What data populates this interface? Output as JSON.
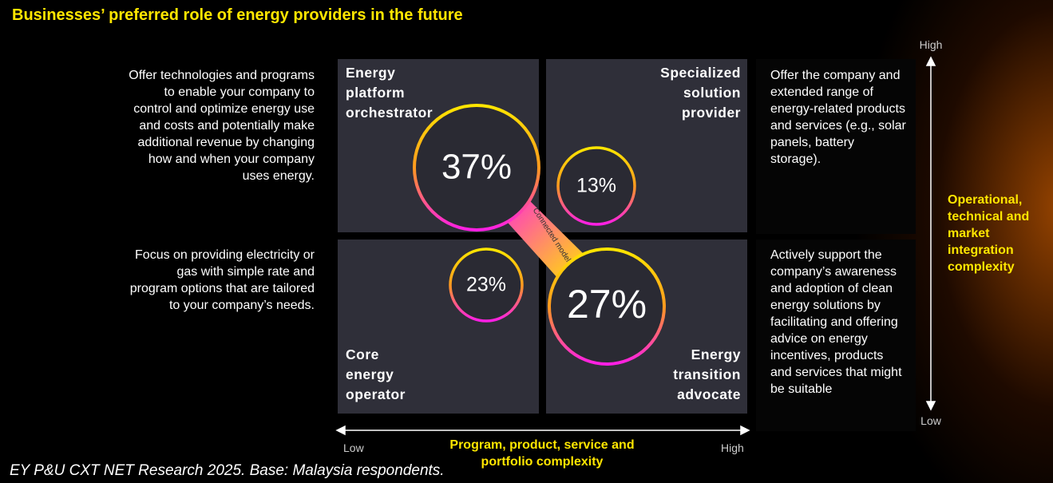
{
  "title": "Businesses’ preferred role of energy providers in the future",
  "quadrants": [
    {
      "label": "Energy platform orchestrator",
      "share": "37%"
    },
    {
      "label": "Specialized solution provider",
      "share": "13%"
    },
    {
      "label": "Core energy operator",
      "share": "23%"
    },
    {
      "label": "Energy transition advocate",
      "share": "27%"
    }
  ],
  "left_descriptions": [
    "Offer technologies and programs to enable your company to control and optimize energy use and costs and potentially make additional revenue by changing how and when your company uses energy.",
    "Focus on providing electricity or gas with simple rate and program options that are tailored to your company’s needs."
  ],
  "right_descriptions": [
    "Offer the company and extended range of energy-related products and services (e.g., solar panels, battery storage).",
    "Actively support the company’s awareness and adoption of clean energy solutions by facilitating and offering advice on energy incentives, products and services that might be suitable"
  ],
  "connector_label": "Connected models",
  "y_axis": {
    "high": "High",
    "low": "Low",
    "label": "Operational, technical and market integration complexity"
  },
  "x_axis": {
    "low": "Low",
    "high": "High",
    "label": "Program, product, service and portfolio complexity"
  },
  "source": "EY P&U CXT NET Research 2025. Base: Malaysia respondents."
}
